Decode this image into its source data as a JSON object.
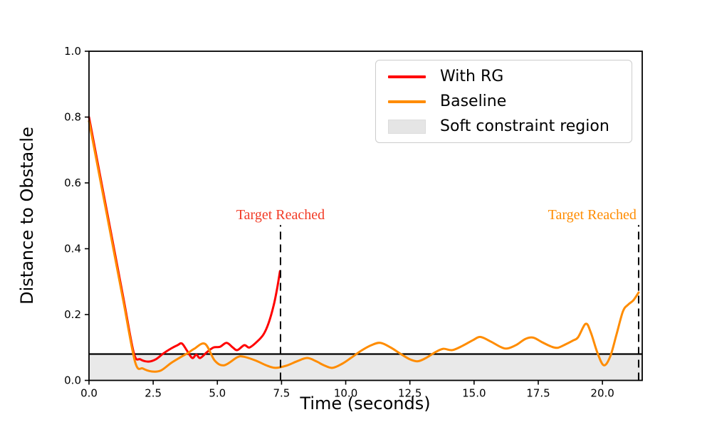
{
  "chart_data": {
    "type": "line",
    "title": "",
    "xlabel": "Time (seconds)",
    "ylabel": "Distance to Obstacle",
    "xlim": [
      0,
      21.55
    ],
    "ylim": [
      0.0,
      1.0
    ],
    "grid": false,
    "background": "#ffffff",
    "spine_color": "#000000",
    "xticks": {
      "values": [
        0.0,
        2.5,
        5.0,
        7.5,
        10.0,
        12.5,
        15.0,
        17.5,
        20.0
      ],
      "labels": [
        "0.0",
        "2.5",
        "5.0",
        "7.5",
        "10.0",
        "12.5",
        "15.0",
        "17.5",
        "20.0"
      ]
    },
    "yticks": {
      "values": [
        0.0,
        0.2,
        0.4,
        0.6,
        0.8,
        1.0
      ],
      "labels": [
        "0.0",
        "0.2",
        "0.4",
        "0.6",
        "0.8",
        "1.0"
      ]
    },
    "legend": {
      "position": "upper right",
      "entries": [
        {
          "label": "With RG",
          "marker": "line",
          "color": "#ff0000"
        },
        {
          "label": "Baseline",
          "marker": "line",
          "color": "#ff8c00"
        },
        {
          "label": "Soft constraint region",
          "marker": "patch",
          "color": "#e5e5e5"
        }
      ]
    },
    "soft_constraint_region": {
      "ymin": 0.0,
      "ymax": 0.08,
      "fill": "#e9e9e9",
      "boundary_color": "#000000"
    },
    "annotations": [
      {
        "label": "Target Reached",
        "x": 7.46,
        "line_top_y": 0.472,
        "align": "center",
        "color": "#f23b26",
        "line_style": "dashed",
        "line_color": "#000000"
      },
      {
        "label": "Target Reached",
        "x": 21.41,
        "line_top_y": 0.472,
        "align": "right",
        "color": "#ff8c00",
        "line_style": "dashed",
        "line_color": "#000000"
      }
    ],
    "series": [
      {
        "name": "With RG",
        "color": "#ff0000",
        "points": [
          [
            0.0,
            0.8
          ],
          [
            0.45,
            0.615
          ],
          [
            0.9,
            0.431
          ],
          [
            1.35,
            0.246
          ],
          [
            1.75,
            0.082
          ],
          [
            2.0,
            0.064
          ],
          [
            2.3,
            0.057
          ],
          [
            2.6,
            0.064
          ],
          [
            2.9,
            0.082
          ],
          [
            3.2,
            0.097
          ],
          [
            3.45,
            0.107
          ],
          [
            3.62,
            0.112
          ],
          [
            3.82,
            0.09
          ],
          [
            4.02,
            0.068
          ],
          [
            4.18,
            0.078
          ],
          [
            4.33,
            0.068
          ],
          [
            4.6,
            0.086
          ],
          [
            4.85,
            0.1
          ],
          [
            5.1,
            0.102
          ],
          [
            5.36,
            0.114
          ],
          [
            5.6,
            0.1
          ],
          [
            5.78,
            0.092
          ],
          [
            6.05,
            0.107
          ],
          [
            6.25,
            0.1
          ],
          [
            6.55,
            0.118
          ],
          [
            6.8,
            0.14
          ],
          [
            7.0,
            0.175
          ],
          [
            7.2,
            0.23
          ],
          [
            7.33,
            0.28
          ],
          [
            7.44,
            0.332
          ]
        ]
      },
      {
        "name": "Baseline",
        "color": "#ff8c00",
        "points": [
          [
            0.0,
            0.788
          ],
          [
            0.45,
            0.604
          ],
          [
            0.9,
            0.42
          ],
          [
            1.35,
            0.236
          ],
          [
            1.8,
            0.055
          ],
          [
            2.1,
            0.036
          ],
          [
            2.45,
            0.027
          ],
          [
            2.8,
            0.03
          ],
          [
            3.2,
            0.053
          ],
          [
            3.6,
            0.072
          ],
          [
            3.85,
            0.083
          ],
          [
            4.1,
            0.096
          ],
          [
            4.52,
            0.111
          ],
          [
            4.9,
            0.06
          ],
          [
            5.27,
            0.046
          ],
          [
            5.77,
            0.07
          ],
          [
            6.02,
            0.072
          ],
          [
            6.5,
            0.06
          ],
          [
            6.9,
            0.046
          ],
          [
            7.26,
            0.038
          ],
          [
            7.7,
            0.045
          ],
          [
            8.1,
            0.058
          ],
          [
            8.5,
            0.068
          ],
          [
            8.85,
            0.058
          ],
          [
            9.15,
            0.046
          ],
          [
            9.48,
            0.038
          ],
          [
            9.85,
            0.05
          ],
          [
            10.2,
            0.068
          ],
          [
            10.6,
            0.09
          ],
          [
            11.0,
            0.107
          ],
          [
            11.35,
            0.114
          ],
          [
            11.75,
            0.1
          ],
          [
            12.15,
            0.08
          ],
          [
            12.5,
            0.064
          ],
          [
            12.8,
            0.058
          ],
          [
            13.1,
            0.067
          ],
          [
            13.5,
            0.086
          ],
          [
            13.8,
            0.096
          ],
          [
            14.15,
            0.092
          ],
          [
            14.55,
            0.105
          ],
          [
            14.95,
            0.122
          ],
          [
            15.25,
            0.132
          ],
          [
            15.65,
            0.118
          ],
          [
            16.05,
            0.101
          ],
          [
            16.3,
            0.097
          ],
          [
            16.65,
            0.108
          ],
          [
            17.0,
            0.126
          ],
          [
            17.3,
            0.13
          ],
          [
            17.65,
            0.116
          ],
          [
            18.0,
            0.103
          ],
          [
            18.25,
            0.099
          ],
          [
            18.55,
            0.109
          ],
          [
            18.85,
            0.121
          ],
          [
            19.05,
            0.131
          ],
          [
            19.35,
            0.172
          ],
          [
            19.55,
            0.145
          ],
          [
            19.8,
            0.085
          ],
          [
            20.05,
            0.046
          ],
          [
            20.3,
            0.072
          ],
          [
            20.55,
            0.14
          ],
          [
            20.8,
            0.21
          ],
          [
            21.0,
            0.23
          ],
          [
            21.2,
            0.243
          ],
          [
            21.41,
            0.267
          ]
        ]
      }
    ]
  }
}
